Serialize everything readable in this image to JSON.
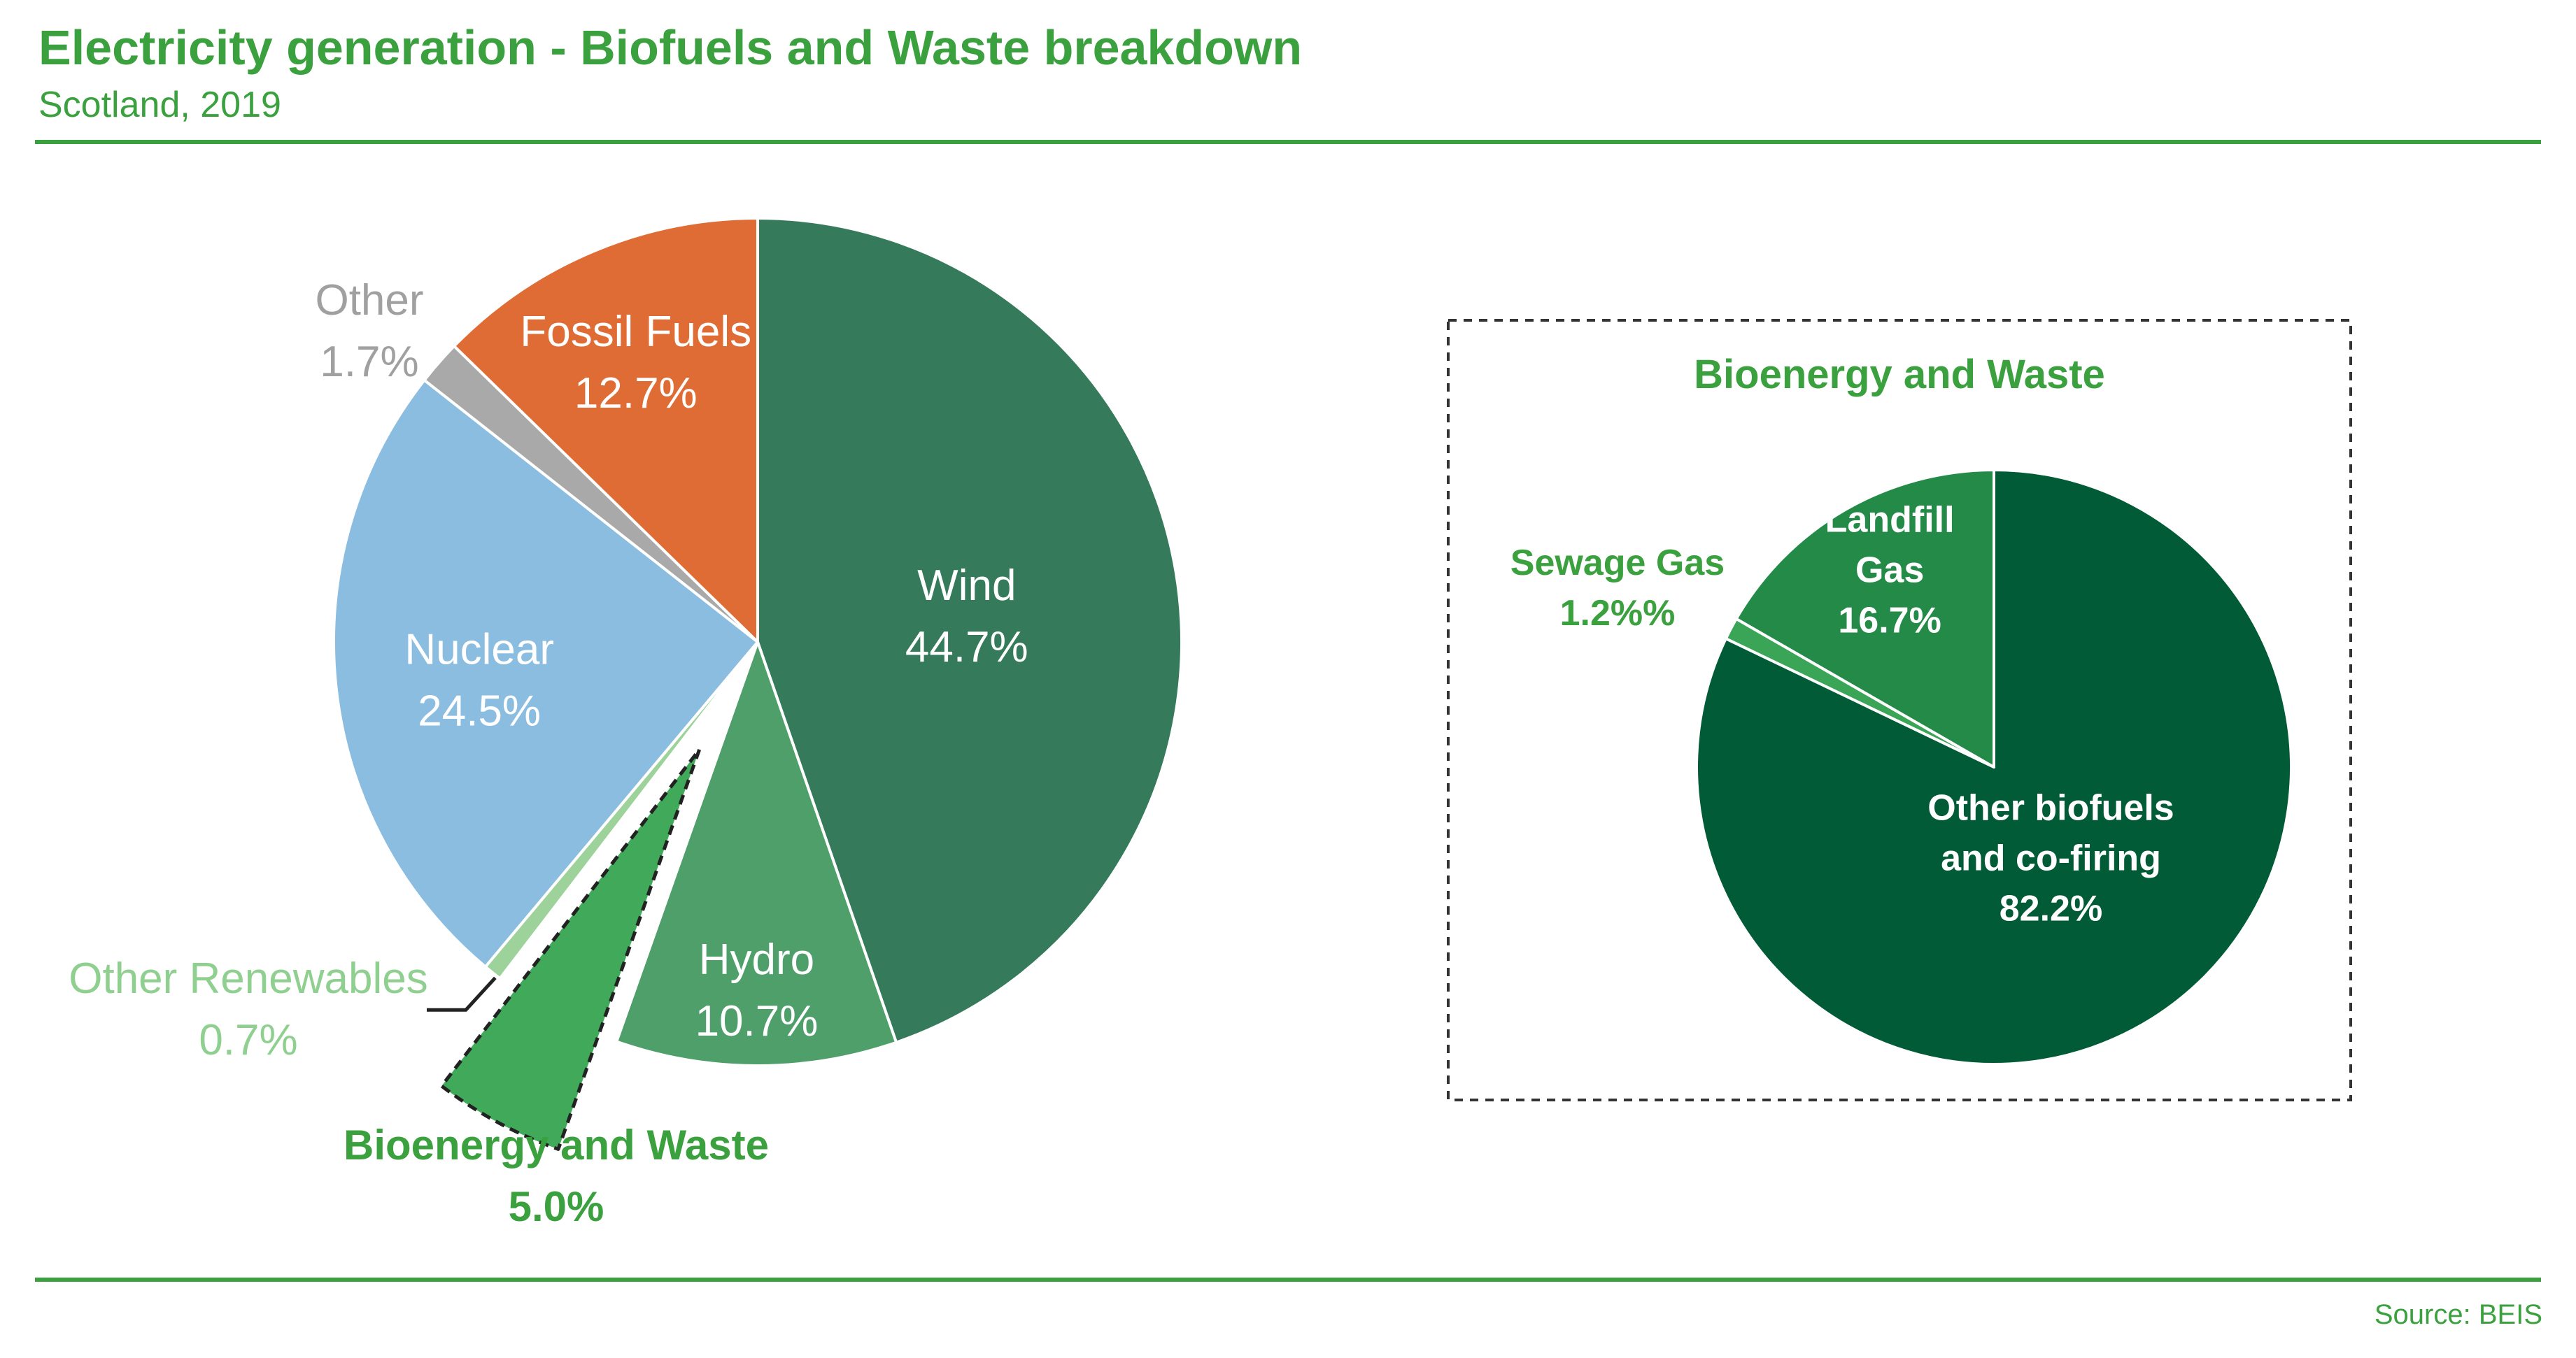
{
  "header": {
    "title": "Electricity generation - Biofuels and Waste breakdown",
    "subtitle": "Scotland, 2019"
  },
  "footer": {
    "source": "Source: BEIS"
  },
  "chart_data": [
    {
      "type": "pie",
      "title": "",
      "slices": [
        {
          "label": "Wind",
          "value": 44.7,
          "display": "44.7%",
          "color": "#347a5b"
        },
        {
          "label": "Hydro",
          "value": 10.7,
          "display": "10.7%",
          "color": "#4f9f6b"
        },
        {
          "label": "Bioenergy and Waste",
          "value": 5.0,
          "display": "5.0%",
          "color": "#40aa5a",
          "exploded": true
        },
        {
          "label": "Other Renewables",
          "value": 0.7,
          "display": "0.7%",
          "color": "#9dd39a"
        },
        {
          "label": "Nuclear",
          "value": 24.5,
          "display": "24.5%",
          "color": "#8bbde0"
        },
        {
          "label": "Other",
          "value": 1.7,
          "display": "1.7%",
          "color": "#a9a9a9"
        },
        {
          "label": "Fossil Fuels",
          "value": 12.7,
          "display": "12.7%",
          "color": "#e06c35"
        }
      ]
    },
    {
      "type": "pie",
      "title": "Bioenergy and Waste",
      "slices": [
        {
          "label": "Other biofuels and co-firing",
          "label_lines": [
            "Other biofuels",
            "and co-firing"
          ],
          "value": 82.2,
          "display": "82.2%",
          "color": "#005b36"
        },
        {
          "label": "Sewage Gas",
          "label_lines": [
            "Sewage Gas"
          ],
          "value": 1.2,
          "display": "1.2%%",
          "color": "#3aa556"
        },
        {
          "label": "Landfill Gas",
          "label_lines": [
            "Landfill",
            "Gas"
          ],
          "value": 16.7,
          "display": "16.7%",
          "color": "#238a48"
        }
      ]
    }
  ]
}
